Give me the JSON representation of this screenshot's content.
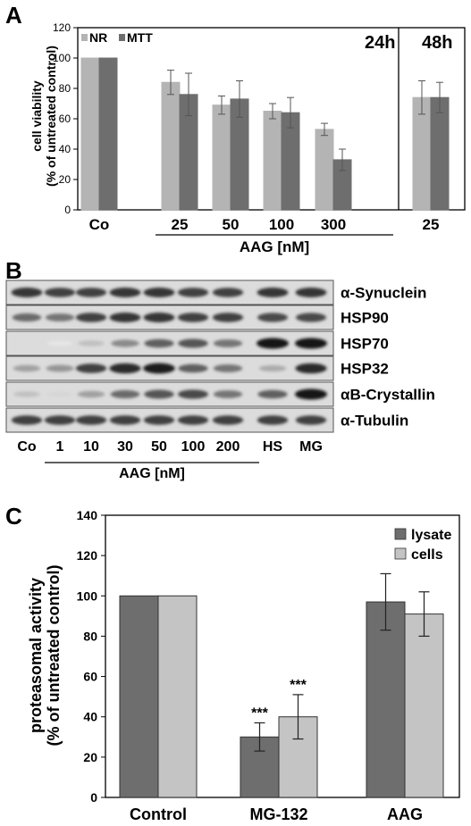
{
  "chart_data": [
    {
      "panel": "A",
      "type": "bar",
      "ylabel": "cell viability (% of untreated control)",
      "ylim": [
        0,
        120
      ],
      "yticks": [
        0,
        20,
        40,
        60,
        80,
        100,
        120
      ],
      "categories": [
        "Co",
        "25",
        "50",
        "100",
        "300",
        "25"
      ],
      "group_label": "AAG [nM]",
      "time_labels": [
        "24h",
        "48h"
      ],
      "series": [
        {
          "name": "NR",
          "color": "#b4b4b4",
          "values": [
            100,
            84,
            69,
            65,
            53,
            74
          ],
          "errors": [
            0,
            8,
            6,
            5,
            4,
            11
          ]
        },
        {
          "name": "MTT",
          "color": "#6e6e6e",
          "values": [
            100,
            76,
            73,
            64,
            33,
            74
          ],
          "errors": [
            0,
            14,
            12,
            10,
            7,
            10
          ]
        }
      ],
      "legend": "top-left"
    },
    {
      "panel": "B",
      "type": "table",
      "blot_labels": [
        "α-Synuclein",
        "HSP90",
        "HSP70",
        "HSP32",
        "αB-Crystallin",
        "α-Tubulin"
      ],
      "lanes": [
        "Co",
        "1",
        "10",
        "30",
        "50",
        "100",
        "200",
        "HS",
        "MG"
      ],
      "group_label": "AAG [nM]",
      "band_intensity": [
        [
          0.85,
          0.8,
          0.8,
          0.85,
          0.85,
          0.8,
          0.8,
          0.85,
          0.85
        ],
        [
          0.6,
          0.55,
          0.8,
          0.85,
          0.85,
          0.8,
          0.8,
          0.75,
          0.75
        ],
        [
          0.0,
          0.02,
          0.2,
          0.45,
          0.65,
          0.7,
          0.55,
          1.0,
          1.0
        ],
        [
          0.35,
          0.4,
          0.8,
          0.9,
          0.95,
          0.65,
          0.55,
          0.3,
          0.9
        ],
        [
          0.2,
          0.1,
          0.35,
          0.6,
          0.7,
          0.75,
          0.55,
          0.65,
          1.0
        ],
        [
          0.8,
          0.8,
          0.8,
          0.8,
          0.8,
          0.8,
          0.8,
          0.8,
          0.8
        ]
      ]
    },
    {
      "panel": "C",
      "type": "bar",
      "ylabel": "proteasomal activity (% of untreated control)",
      "ylim": [
        0,
        140
      ],
      "yticks": [
        0,
        20,
        40,
        60,
        80,
        100,
        120,
        140
      ],
      "categories": [
        "Control",
        "MG-132",
        "AAG"
      ],
      "series": [
        {
          "name": "lysate",
          "color": "#6e6e6e",
          "values": [
            100,
            30,
            97
          ],
          "errors": [
            0,
            7,
            14
          ]
        },
        {
          "name": "cells",
          "color": "#c4c4c4",
          "values": [
            100,
            40,
            91
          ],
          "errors": [
            0,
            11,
            11
          ]
        }
      ],
      "significance": [
        "",
        "***",
        ""
      ],
      "legend": "top-right"
    }
  ],
  "panel_letters": [
    "A",
    "B",
    "C"
  ]
}
